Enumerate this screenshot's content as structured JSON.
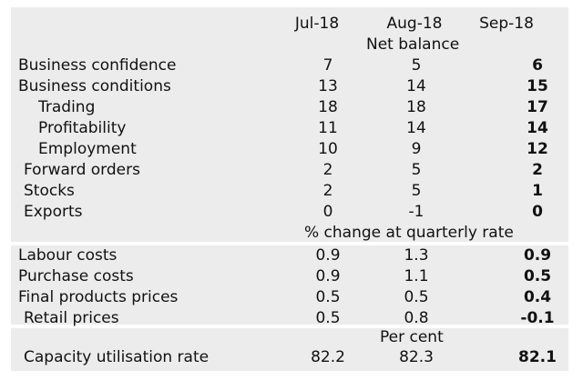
{
  "headers": {
    "col1": "Jul-18",
    "col2": "Aug-18",
    "col3": "Sep-18"
  },
  "sections": [
    {
      "title": "Net balance",
      "rows": [
        {
          "label": "Business confidence",
          "indent": 0,
          "values": [
            "7",
            "5",
            "6"
          ]
        },
        {
          "label": "Business conditions",
          "indent": 0,
          "values": [
            "13",
            "14",
            "15"
          ]
        },
        {
          "label": "Trading",
          "indent": 2,
          "values": [
            "18",
            "18",
            "17"
          ]
        },
        {
          "label": "Profitability",
          "indent": 2,
          "values": [
            "11",
            "14",
            "14"
          ]
        },
        {
          "label": "Employment",
          "indent": 2,
          "values": [
            "10",
            "9",
            "12"
          ]
        },
        {
          "label": "Forward orders",
          "indent": 1,
          "values": [
            "2",
            "5",
            "2"
          ]
        },
        {
          "label": "Stocks",
          "indent": 1,
          "values": [
            "2",
            "5",
            "1"
          ]
        },
        {
          "label": "Exports",
          "indent": 1,
          "values": [
            "0",
            "-1",
            "0"
          ]
        }
      ]
    },
    {
      "title": "% change at quarterly rate",
      "rows": [
        {
          "label": "Labour costs",
          "indent": 0,
          "values": [
            "0.9",
            "1.3",
            "0.9"
          ]
        },
        {
          "label": "Purchase costs",
          "indent": 0,
          "values": [
            "0.9",
            "1.1",
            "0.5"
          ]
        },
        {
          "label": "Final products prices",
          "indent": 0,
          "values": [
            "0.5",
            "0.5",
            "0.4"
          ]
        },
        {
          "label": "Retail prices",
          "indent": 1,
          "values": [
            "0.5",
            "0.8",
            "-0.1"
          ]
        }
      ]
    },
    {
      "title": "Per cent",
      "rows": [
        {
          "label": "Capacity utilisation rate",
          "indent": 1,
          "values": [
            "82.2",
            "82.3",
            "82.1"
          ]
        }
      ]
    }
  ]
}
